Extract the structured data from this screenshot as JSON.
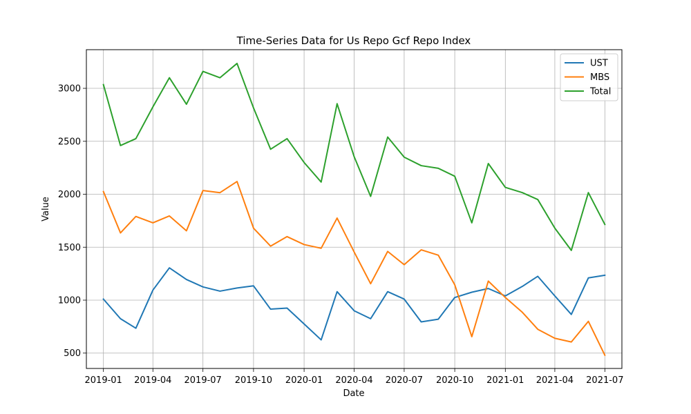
{
  "chart_data": {
    "type": "line",
    "title": "Time-Series Data for Us Repo Gcf Repo Index",
    "xlabel": "Date",
    "ylabel": "Value",
    "grid": true,
    "legend_position": "top-right",
    "x": [
      "2019-01-01",
      "2019-02-01",
      "2019-03-01",
      "2019-04-01",
      "2019-05-01",
      "2019-06-01",
      "2019-07-01",
      "2019-08-01",
      "2019-09-01",
      "2019-10-01",
      "2019-11-01",
      "2019-12-01",
      "2020-01-01",
      "2020-02-01",
      "2020-03-01",
      "2020-04-01",
      "2020-05-01",
      "2020-06-01",
      "2020-07-01",
      "2020-08-01",
      "2020-09-01",
      "2020-10-01",
      "2020-11-01",
      "2020-12-01",
      "2021-01-01",
      "2021-02-01",
      "2021-03-01",
      "2021-04-01",
      "2021-05-01",
      "2021-06-01",
      "2021-07-01"
    ],
    "xlim": [
      "2018-12-01",
      "2021-08-01"
    ],
    "ylim": [
      355,
      3365
    ],
    "x_ticks": [
      "2019-01",
      "2019-04",
      "2019-07",
      "2019-10",
      "2020-01",
      "2020-04",
      "2020-07",
      "2020-10",
      "2021-01",
      "2021-04",
      "2021-07"
    ],
    "y_ticks": [
      500,
      1000,
      1500,
      2000,
      2500,
      3000
    ],
    "series": [
      {
        "name": "UST",
        "color": "#1f77b4",
        "values": [
          1010,
          825,
          735,
          1095,
          1305,
          1195,
          1125,
          1085,
          1115,
          1135,
          915,
          925,
          775,
          625,
          1080,
          900,
          825,
          1080,
          1010,
          795,
          820,
          1025,
          1075,
          1110,
          1040,
          1130,
          1225,
          1040,
          865,
          1210,
          1235
        ]
      },
      {
        "name": "MBS",
        "color": "#ff7f0e",
        "values": [
          2025,
          1635,
          1790,
          1730,
          1795,
          1655,
          2035,
          2015,
          2120,
          1680,
          1510,
          1600,
          1525,
          1490,
          1775,
          1455,
          1155,
          1460,
          1335,
          1475,
          1425,
          1145,
          655,
          1180,
          1025,
          885,
          725,
          640,
          605,
          800,
          480
        ]
      },
      {
        "name": "Total",
        "color": "#2ca02c",
        "values": [
          3035,
          2460,
          2525,
          2825,
          3100,
          2850,
          3160,
          3100,
          3235,
          2815,
          2425,
          2525,
          2300,
          2115,
          2855,
          2355,
          1980,
          2540,
          2350,
          2270,
          2245,
          2170,
          1730,
          2290,
          2065,
          2015,
          1950,
          1680,
          1470,
          2015,
          1715
        ]
      }
    ]
  }
}
